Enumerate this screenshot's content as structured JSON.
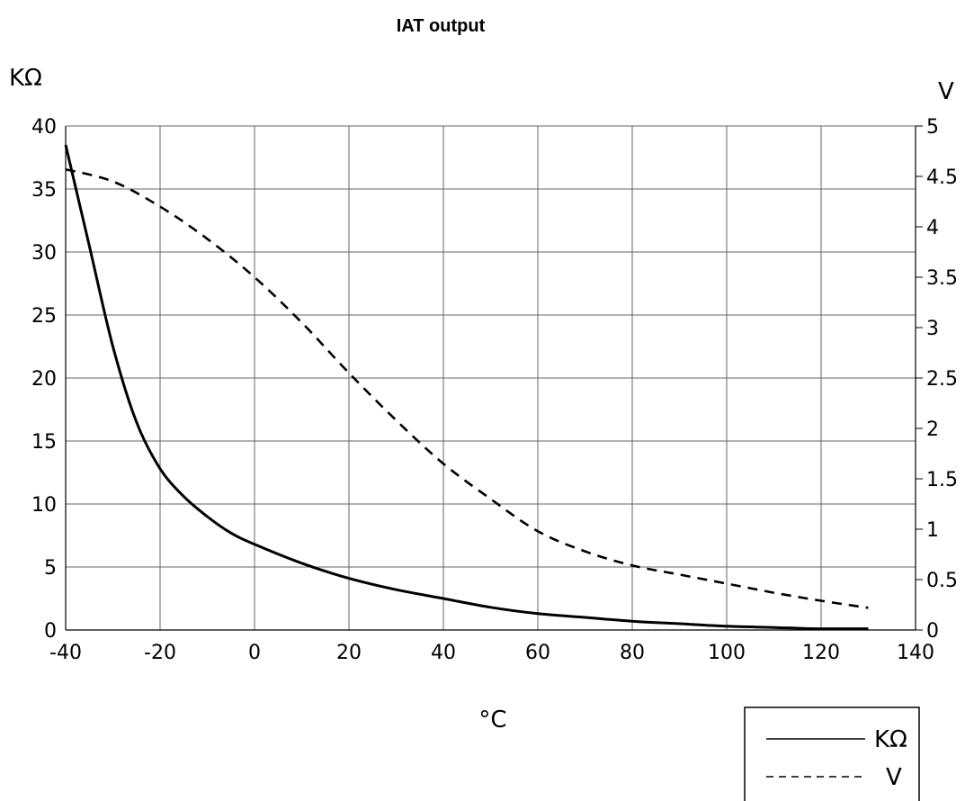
{
  "chart_data": {
    "type": "line",
    "title": "IAT output",
    "xlabel": "°C",
    "ylabel_left": "KΩ",
    "ylabel_right": "V",
    "xlim": [
      -40,
      140
    ],
    "ylim_left": [
      0,
      40
    ],
    "ylim_right": [
      0,
      5
    ],
    "x_ticks": [
      "-40",
      "-20",
      "0",
      "20",
      "40",
      "60",
      "80",
      "100",
      "120",
      "140"
    ],
    "y_left_ticks": [
      "0",
      "5",
      "10",
      "15",
      "20",
      "25",
      "30",
      "35",
      "40"
    ],
    "y_right_ticks": [
      "0",
      "0.5",
      "1",
      "1.5",
      "2",
      "2.5",
      "3",
      "3.5",
      "4",
      "4.5",
      "5"
    ],
    "grid": true,
    "legend": {
      "position": "bottom-right",
      "entries": [
        "KΩ",
        "V"
      ]
    },
    "series": [
      {
        "name": "KΩ",
        "axis": "left",
        "style": "solid",
        "x": [
          -40,
          -35,
          -30,
          -25,
          -20,
          -15,
          -10,
          -5,
          0,
          10,
          20,
          30,
          40,
          50,
          60,
          70,
          80,
          90,
          100,
          110,
          120,
          130
        ],
        "y": [
          38.5,
          30.5,
          22.5,
          16.5,
          12.8,
          10.6,
          9.0,
          7.7,
          6.8,
          5.3,
          4.1,
          3.2,
          2.5,
          1.8,
          1.3,
          1.0,
          0.7,
          0.5,
          0.3,
          0.2,
          0.1,
          0.1
        ]
      },
      {
        "name": "V",
        "axis": "right",
        "style": "dashed",
        "x": [
          -40,
          -30,
          -20,
          -10,
          0,
          10,
          20,
          30,
          40,
          50,
          60,
          70,
          80,
          90,
          100,
          110,
          120,
          130
        ],
        "y": [
          4.57,
          4.45,
          4.2,
          3.88,
          3.5,
          3.05,
          2.55,
          2.08,
          1.65,
          1.3,
          0.98,
          0.78,
          0.64,
          0.55,
          0.46,
          0.37,
          0.29,
          0.22
        ]
      }
    ]
  }
}
